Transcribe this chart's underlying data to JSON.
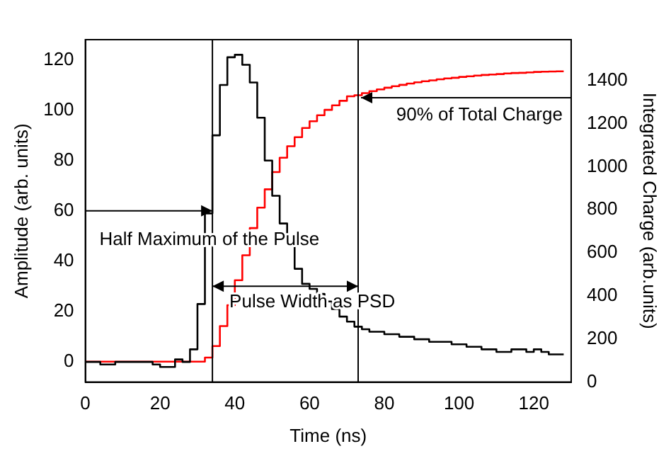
{
  "chart_data": {
    "type": "step",
    "xlabel": "Time (ns)",
    "ylabel": "Amplitude (arb. units)",
    "y2label": "Integrated Charge (arb.units)",
    "xlim": [
      0,
      130
    ],
    "xticks": [
      0,
      20,
      40,
      60,
      80,
      100,
      120
    ],
    "ylim": [
      -8,
      128
    ],
    "yticks": [
      0,
      20,
      40,
      60,
      80,
      100,
      120
    ],
    "y2lim": [
      0,
      1590
    ],
    "y2ticks": [
      0,
      200,
      400,
      600,
      800,
      1000,
      1200,
      1400
    ],
    "grid": false,
    "line_style": "solid",
    "marker": "none",
    "series": [
      {
        "color": "#000000",
        "x": [
          0,
          2,
          4,
          6,
          8,
          10,
          12,
          14,
          16,
          18,
          20,
          22,
          24,
          26,
          28,
          30,
          32,
          34,
          36,
          38,
          40,
          42,
          44,
          46,
          48,
          50,
          52,
          54,
          56,
          58,
          60,
          62,
          64,
          66,
          68,
          70,
          72,
          74,
          76,
          78,
          80,
          82,
          84,
          86,
          88,
          90,
          92,
          94,
          96,
          98,
          100,
          102,
          104,
          106,
          108,
          110,
          112,
          114,
          116,
          118,
          120,
          122,
          124,
          126,
          128
        ],
        "values": [
          0,
          0,
          0,
          -1,
          -1,
          0,
          0,
          0,
          0,
          0,
          -1,
          -2,
          -2,
          1,
          0,
          5,
          23,
          59,
          90,
          110,
          121,
          122,
          118,
          111,
          97,
          80,
          66,
          55,
          47,
          37,
          31,
          29,
          27,
          24,
          21,
          18,
          16,
          14,
          13,
          12,
          12,
          11,
          11,
          10,
          10,
          9,
          9,
          8,
          8,
          8,
          7,
          7,
          6,
          6,
          5,
          5,
          4,
          4,
          5,
          5,
          4,
          5,
          4,
          3,
          3
        ]
      },
      {
        "color": "#ff0000",
        "axis": "y2",
        "x": [
          0,
          2,
          4,
          6,
          8,
          10,
          12,
          14,
          16,
          18,
          20,
          22,
          24,
          26,
          28,
          30,
          32,
          34,
          36,
          38,
          40,
          42,
          44,
          46,
          48,
          50,
          52,
          54,
          56,
          58,
          60,
          62,
          64,
          66,
          68,
          70,
          72,
          74,
          76,
          78,
          80,
          82,
          84,
          86,
          88,
          90,
          92,
          94,
          96,
          98,
          100,
          102,
          104,
          106,
          108,
          110,
          112,
          114,
          116,
          118,
          120,
          122,
          124,
          126,
          128
        ],
        "values": [
          95,
          95,
          95,
          95,
          95,
          95,
          95,
          95,
          95,
          95,
          95,
          95,
          95,
          95,
          95,
          95,
          95,
          114,
          167,
          260,
          357,
          473,
          589,
          715,
          810,
          895,
          975,
          1042,
          1095,
          1137,
          1180,
          1211,
          1239,
          1264,
          1285,
          1306,
          1327,
          1332,
          1342,
          1351,
          1359,
          1367,
          1374,
          1380,
          1386,
          1392,
          1397,
          1401,
          1406,
          1410,
          1413,
          1417,
          1420,
          1423,
          1426,
          1428,
          1430,
          1433,
          1435,
          1436,
          1438,
          1440,
          1441,
          1442,
          1443
        ]
      }
    ],
    "ref_lines": [
      {
        "axis": "x",
        "value": 34
      },
      {
        "axis": "x",
        "value": 73
      },
      {
        "axis": "y",
        "value": 60,
        "label": "Half Maximum of the Pulse"
      },
      {
        "axis": "y2",
        "value": 1320,
        "label": "90% of Total Charge"
      }
    ],
    "annotations": [
      "Pulse Width as PSD"
    ]
  }
}
